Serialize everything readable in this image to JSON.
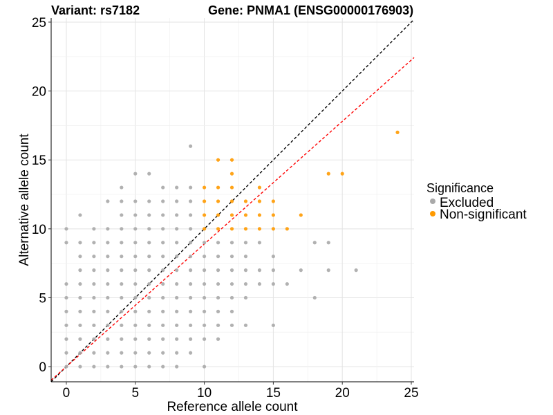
{
  "chart_data": {
    "type": "scatter",
    "title_left": "Variant: rs7182",
    "title_right": "Gene: PNMA1 (ENSG00000176903)",
    "xlabel": "Reference allele count",
    "ylabel": "Alternative allele count",
    "xlim": [
      -1.1,
      25.2
    ],
    "ylim": [
      -1.1,
      25.3
    ],
    "xticks": [
      0,
      5,
      10,
      15,
      20,
      25
    ],
    "yticks": [
      0,
      5,
      10,
      15,
      20,
      25
    ],
    "grid": true,
    "legend": {
      "title": "Significance",
      "placement": "right",
      "entries": [
        {
          "label": "Excluded",
          "color": "#a9a9a9"
        },
        {
          "label": "Non-significant",
          "color": "#ff9a00"
        }
      ]
    },
    "reference_lines": [
      {
        "name": "identity",
        "slope": 1,
        "intercept": 0,
        "color": "#000000",
        "style": "dashed"
      },
      {
        "name": "fit",
        "slope": 0.89,
        "intercept": 0,
        "color": "#ff0000",
        "style": "dashed"
      }
    ],
    "series": [
      {
        "name": "Excluded",
        "color": "#a9a9a9",
        "points": [
          [
            0,
            0
          ],
          [
            0,
            1
          ],
          [
            0,
            2
          ],
          [
            0,
            3
          ],
          [
            0,
            4
          ],
          [
            0,
            5
          ],
          [
            0,
            6
          ],
          [
            0,
            9
          ],
          [
            0,
            10
          ],
          [
            1,
            0
          ],
          [
            1,
            1
          ],
          [
            1,
            2
          ],
          [
            1,
            3
          ],
          [
            1,
            4
          ],
          [
            1,
            5
          ],
          [
            1,
            6
          ],
          [
            1,
            7
          ],
          [
            1,
            8
          ],
          [
            1,
            9
          ],
          [
            1,
            11
          ],
          [
            2,
            0
          ],
          [
            2,
            1
          ],
          [
            2,
            2
          ],
          [
            2,
            3
          ],
          [
            2,
            4
          ],
          [
            2,
            5
          ],
          [
            2,
            6
          ],
          [
            2,
            7
          ],
          [
            2,
            8
          ],
          [
            2,
            9
          ],
          [
            2,
            10
          ],
          [
            3,
            0
          ],
          [
            3,
            1
          ],
          [
            3,
            2
          ],
          [
            3,
            3
          ],
          [
            3,
            4
          ],
          [
            3,
            5
          ],
          [
            3,
            6
          ],
          [
            3,
            7
          ],
          [
            3,
            8
          ],
          [
            3,
            9
          ],
          [
            3,
            10
          ],
          [
            3,
            12
          ],
          [
            4,
            0
          ],
          [
            4,
            1
          ],
          [
            4,
            2
          ],
          [
            4,
            3
          ],
          [
            4,
            4
          ],
          [
            4,
            5
          ],
          [
            4,
            6
          ],
          [
            4,
            7
          ],
          [
            4,
            8
          ],
          [
            4,
            9
          ],
          [
            4,
            10
          ],
          [
            4,
            11
          ],
          [
            4,
            12
          ],
          [
            4,
            13
          ],
          [
            5,
            0
          ],
          [
            5,
            1
          ],
          [
            5,
            2
          ],
          [
            5,
            3
          ],
          [
            5,
            4
          ],
          [
            5,
            5
          ],
          [
            5,
            6
          ],
          [
            5,
            7
          ],
          [
            5,
            8
          ],
          [
            5,
            9
          ],
          [
            5,
            10
          ],
          [
            5,
            11
          ],
          [
            5,
            12
          ],
          [
            5,
            14
          ],
          [
            6,
            0
          ],
          [
            6,
            1
          ],
          [
            6,
            2
          ],
          [
            6,
            3
          ],
          [
            6,
            4
          ],
          [
            6,
            5
          ],
          [
            6,
            6
          ],
          [
            6,
            7
          ],
          [
            6,
            8
          ],
          [
            6,
            9
          ],
          [
            6,
            10
          ],
          [
            6,
            11
          ],
          [
            6,
            12
          ],
          [
            6,
            14
          ],
          [
            7,
            0
          ],
          [
            7,
            1
          ],
          [
            7,
            2
          ],
          [
            7,
            3
          ],
          [
            7,
            4
          ],
          [
            7,
            5
          ],
          [
            7,
            6
          ],
          [
            7,
            7
          ],
          [
            7,
            8
          ],
          [
            7,
            9
          ],
          [
            7,
            10
          ],
          [
            7,
            11
          ],
          [
            7,
            12
          ],
          [
            7,
            13
          ],
          [
            8,
            0
          ],
          [
            8,
            1
          ],
          [
            8,
            2
          ],
          [
            8,
            3
          ],
          [
            8,
            4
          ],
          [
            8,
            5
          ],
          [
            8,
            6
          ],
          [
            8,
            7
          ],
          [
            8,
            8
          ],
          [
            8,
            9
          ],
          [
            8,
            10
          ],
          [
            8,
            11
          ],
          [
            8,
            12
          ],
          [
            8,
            13
          ],
          [
            9,
            1
          ],
          [
            9,
            2
          ],
          [
            9,
            3
          ],
          [
            9,
            4
          ],
          [
            9,
            5
          ],
          [
            9,
            6
          ],
          [
            9,
            7
          ],
          [
            9,
            8
          ],
          [
            9,
            9
          ],
          [
            9,
            10
          ],
          [
            9,
            11
          ],
          [
            9,
            12
          ],
          [
            9,
            13
          ],
          [
            9,
            16
          ],
          [
            10,
            0
          ],
          [
            10,
            2
          ],
          [
            10,
            3
          ],
          [
            10,
            4
          ],
          [
            10,
            5
          ],
          [
            10,
            6
          ],
          [
            10,
            7
          ],
          [
            10,
            8
          ],
          [
            10,
            9
          ],
          [
            11,
            2
          ],
          [
            11,
            3
          ],
          [
            11,
            4
          ],
          [
            11,
            5
          ],
          [
            11,
            6
          ],
          [
            11,
            7
          ],
          [
            11,
            8
          ],
          [
            11,
            9
          ],
          [
            12,
            3
          ],
          [
            12,
            4
          ],
          [
            12,
            5
          ],
          [
            12,
            6
          ],
          [
            12,
            7
          ],
          [
            12,
            8
          ],
          [
            12,
            9
          ],
          [
            13,
            3
          ],
          [
            13,
            5
          ],
          [
            13,
            6
          ],
          [
            13,
            7
          ],
          [
            13,
            8
          ],
          [
            13,
            9
          ],
          [
            14,
            6
          ],
          [
            14,
            7
          ],
          [
            14,
            9
          ],
          [
            15,
            3
          ],
          [
            15,
            6
          ],
          [
            15,
            7
          ],
          [
            15,
            8
          ],
          [
            16,
            6
          ],
          [
            17,
            7
          ],
          [
            18,
            5
          ],
          [
            18,
            9
          ],
          [
            19,
            7
          ],
          [
            19,
            9
          ],
          [
            21,
            7
          ]
        ]
      },
      {
        "name": "Non-significant",
        "color": "#ff9a00",
        "points": [
          [
            10,
            10
          ],
          [
            10,
            11
          ],
          [
            10,
            12
          ],
          [
            10,
            13
          ],
          [
            11,
            10
          ],
          [
            11,
            11
          ],
          [
            11,
            12
          ],
          [
            11,
            13
          ],
          [
            11,
            15
          ],
          [
            12,
            10
          ],
          [
            12,
            11
          ],
          [
            12,
            12
          ],
          [
            12,
            13
          ],
          [
            12,
            14
          ],
          [
            12,
            15
          ],
          [
            13,
            10
          ],
          [
            13,
            11
          ],
          [
            13,
            12
          ],
          [
            14,
            10
          ],
          [
            14,
            11
          ],
          [
            14,
            12
          ],
          [
            14,
            13
          ],
          [
            15,
            10
          ],
          [
            15,
            11
          ],
          [
            15,
            12
          ],
          [
            16,
            10
          ],
          [
            17,
            11
          ],
          [
            19,
            14
          ],
          [
            20,
            14
          ],
          [
            24,
            17
          ]
        ]
      }
    ]
  }
}
